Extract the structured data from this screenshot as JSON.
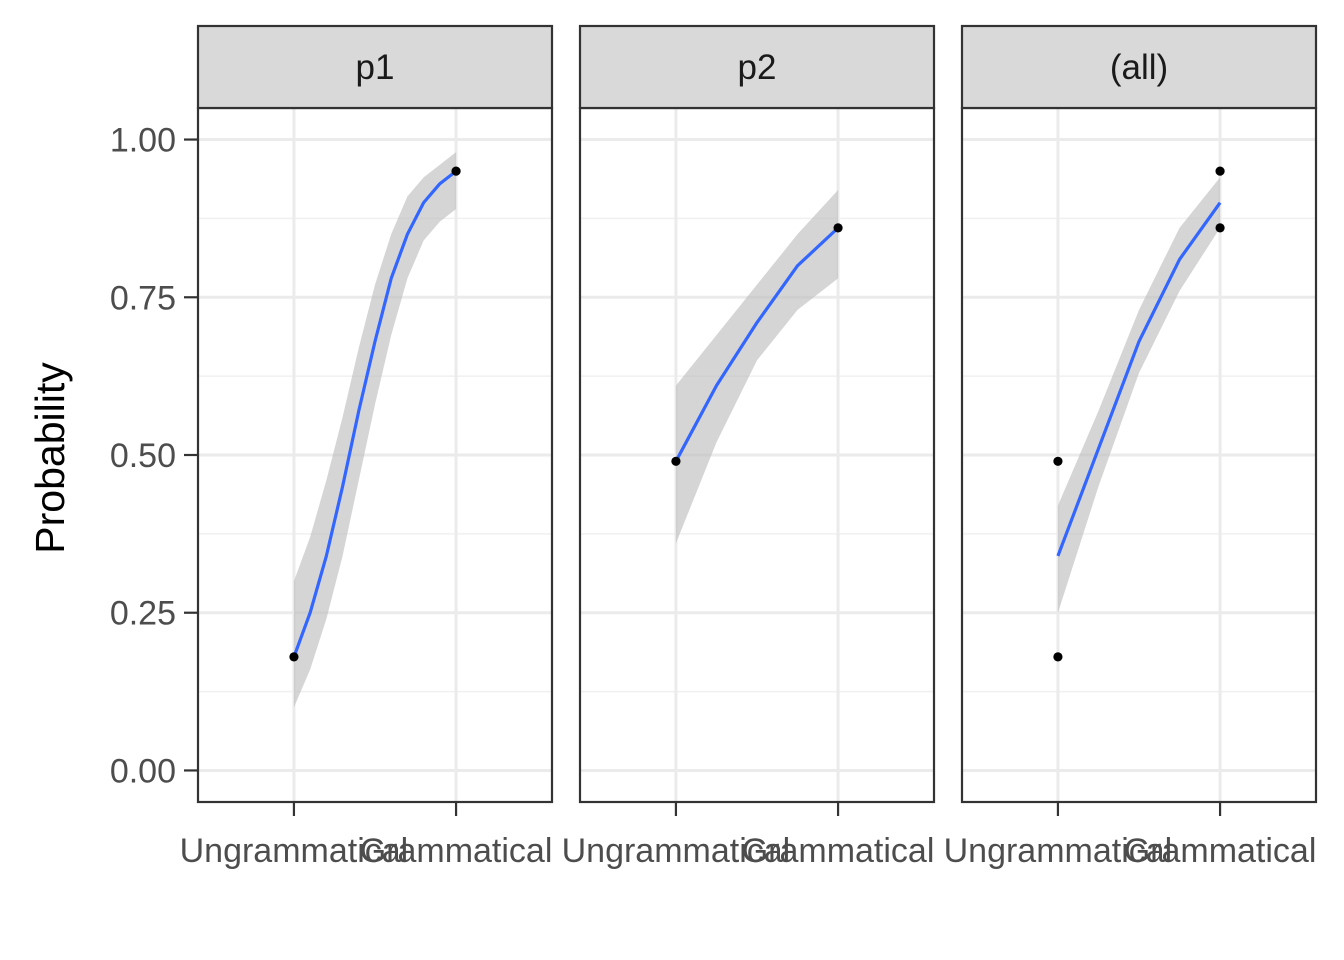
{
  "chart_data": {
    "type": "scatter",
    "ylabel": "Probability",
    "xlabel": "",
    "ylim": [
      0,
      1
    ],
    "y_ticks": [
      "0.00",
      "0.25",
      "0.50",
      "0.75",
      "1.00"
    ],
    "categories": [
      "Ungrammatical",
      "Grammatical"
    ],
    "grid": true,
    "colors": {
      "fit": "#3366ff",
      "ribbon": "#bfbfbf",
      "points": "#000000",
      "strip": "#d9d9d9"
    },
    "panels": [
      {
        "label": "p1",
        "points": [
          {
            "x": "Ungrammatical",
            "y": 0.18
          },
          {
            "x": "Grammatical",
            "y": 0.95
          }
        ],
        "fit": [
          {
            "t": 0.0,
            "y": 0.18,
            "lo": 0.1,
            "hi": 0.3
          },
          {
            "t": 0.1,
            "y": 0.25,
            "lo": 0.16,
            "hi": 0.37
          },
          {
            "t": 0.2,
            "y": 0.34,
            "lo": 0.24,
            "hi": 0.46
          },
          {
            "t": 0.3,
            "y": 0.45,
            "lo": 0.34,
            "hi": 0.56
          },
          {
            "t": 0.4,
            "y": 0.57,
            "lo": 0.46,
            "hi": 0.67
          },
          {
            "t": 0.5,
            "y": 0.68,
            "lo": 0.58,
            "hi": 0.77
          },
          {
            "t": 0.6,
            "y": 0.78,
            "lo": 0.69,
            "hi": 0.85
          },
          {
            "t": 0.7,
            "y": 0.85,
            "lo": 0.78,
            "hi": 0.91
          },
          {
            "t": 0.8,
            "y": 0.9,
            "lo": 0.84,
            "hi": 0.94
          },
          {
            "t": 0.9,
            "y": 0.93,
            "lo": 0.87,
            "hi": 0.96
          },
          {
            "t": 1.0,
            "y": 0.95,
            "lo": 0.89,
            "hi": 0.98
          }
        ]
      },
      {
        "label": "p2",
        "points": [
          {
            "x": "Ungrammatical",
            "y": 0.49
          },
          {
            "x": "Grammatical",
            "y": 0.86
          }
        ],
        "fit": [
          {
            "t": 0.0,
            "y": 0.49,
            "lo": 0.36,
            "hi": 0.61
          },
          {
            "t": 0.25,
            "y": 0.61,
            "lo": 0.52,
            "hi": 0.69
          },
          {
            "t": 0.5,
            "y": 0.71,
            "lo": 0.65,
            "hi": 0.77
          },
          {
            "t": 0.75,
            "y": 0.8,
            "lo": 0.73,
            "hi": 0.85
          },
          {
            "t": 1.0,
            "y": 0.86,
            "lo": 0.78,
            "hi": 0.92
          }
        ]
      },
      {
        "label": "(all)",
        "points": [
          {
            "x": "Ungrammatical",
            "y": 0.49
          },
          {
            "x": "Ungrammatical",
            "y": 0.18
          },
          {
            "x": "Grammatical",
            "y": 0.95
          },
          {
            "x": "Grammatical",
            "y": 0.86
          }
        ],
        "fit": [
          {
            "t": 0.0,
            "y": 0.34,
            "lo": 0.25,
            "hi": 0.42
          },
          {
            "t": 0.25,
            "y": 0.51,
            "lo": 0.45,
            "hi": 0.57
          },
          {
            "t": 0.5,
            "y": 0.68,
            "lo": 0.63,
            "hi": 0.73
          },
          {
            "t": 0.75,
            "y": 0.81,
            "lo": 0.76,
            "hi": 0.86
          },
          {
            "t": 1.0,
            "y": 0.9,
            "lo": 0.86,
            "hi": 0.94
          }
        ]
      }
    ]
  }
}
